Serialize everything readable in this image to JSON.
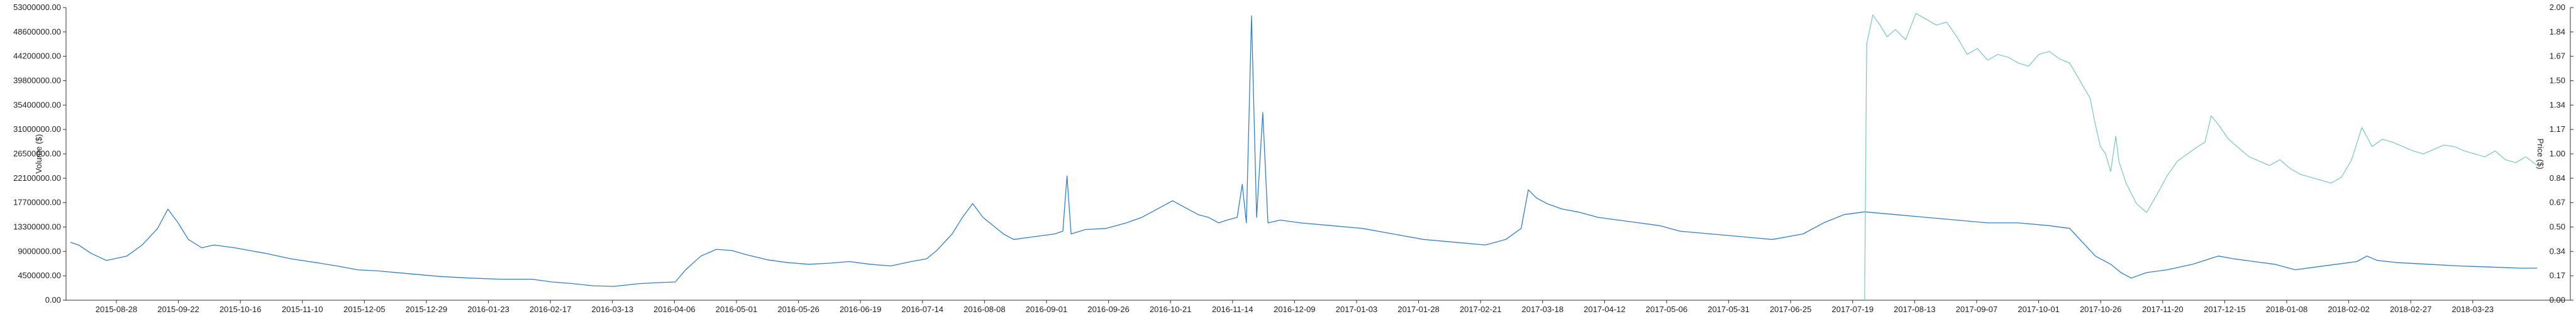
{
  "chart_data": {
    "type": "line",
    "x_tick_labels": [
      "2015-08-28",
      "2015-09-22",
      "2015-10-16",
      "2015-11-10",
      "2015-12-05",
      "2015-12-29",
      "2016-01-23",
      "2016-02-17",
      "2016-03-13",
      "2016-04-06",
      "2016-05-01",
      "2016-05-26",
      "2016-06-19",
      "2016-07-14",
      "2016-08-08",
      "2016-09-01",
      "2016-09-26",
      "2016-10-21",
      "2016-11-14",
      "2016-12-09",
      "2017-01-03",
      "2017-01-28",
      "2017-02-21",
      "2017-03-18",
      "2017-04-12",
      "2017-05-06",
      "2017-05-31",
      "2017-06-25",
      "2017-07-19",
      "2017-08-13",
      "2017-09-07",
      "2017-10-01",
      "2017-10-26",
      "2017-11-20",
      "2017-12-15",
      "2018-01-08",
      "2018-02-02",
      "2018-02-27",
      "2018-03-23"
    ],
    "y_left": {
      "label": "Volume ($)",
      "ticks": [
        "0.00",
        "4500000.00",
        "9000000.00",
        "13300000.00",
        "17700000.00",
        "22100000.00",
        "26500000.00",
        "31000000.00",
        "35400000.00",
        "39800000.00",
        "44200000.00",
        "48600000.00",
        "53000000.00"
      ],
      "ylim": [
        0,
        53000000
      ]
    },
    "y_right": {
      "label": "Price ($)",
      "ticks": [
        "0.00",
        "0.17",
        "0.34",
        "0.50",
        "0.67",
        "0.84",
        "1.00",
        "1.17",
        "1.34",
        "1.50",
        "1.67",
        "1.84",
        "2.00"
      ],
      "ylim": [
        0,
        2
      ]
    },
    "series": [
      {
        "name": "Volume",
        "axis": "left",
        "color": "#2f7ed8",
        "points": [
          [
            0,
            10.5
          ],
          [
            8,
            10.0
          ],
          [
            20,
            8.5
          ],
          [
            35,
            7.2
          ],
          [
            55,
            8.0
          ],
          [
            70,
            10.0
          ],
          [
            85,
            13.0
          ],
          [
            95,
            16.5
          ],
          [
            105,
            14.0
          ],
          [
            115,
            11.0
          ],
          [
            128,
            9.5
          ],
          [
            140,
            10.0
          ],
          [
            160,
            9.5
          ],
          [
            190,
            8.5
          ],
          [
            215,
            7.5
          ],
          [
            240,
            6.8
          ],
          [
            260,
            6.2
          ],
          [
            280,
            5.5
          ],
          [
            300,
            5.3
          ],
          [
            330,
            4.8
          ],
          [
            360,
            4.3
          ],
          [
            390,
            4.0
          ],
          [
            420,
            3.8
          ],
          [
            450,
            3.8
          ],
          [
            470,
            3.3
          ],
          [
            490,
            3.0
          ],
          [
            510,
            2.6
          ],
          [
            530,
            2.5
          ],
          [
            555,
            3.0
          ],
          [
            575,
            3.2
          ],
          [
            590,
            3.3
          ],
          [
            600,
            5.5
          ],
          [
            615,
            8.0
          ],
          [
            630,
            9.2
          ],
          [
            645,
            9.0
          ],
          [
            660,
            8.2
          ],
          [
            680,
            7.3
          ],
          [
            700,
            6.8
          ],
          [
            720,
            6.5
          ],
          [
            740,
            6.7
          ],
          [
            760,
            7.0
          ],
          [
            780,
            6.5
          ],
          [
            800,
            6.2
          ],
          [
            820,
            7.0
          ],
          [
            835,
            7.5
          ],
          [
            845,
            9.0
          ],
          [
            860,
            12.0
          ],
          [
            870,
            15.0
          ],
          [
            880,
            17.5
          ],
          [
            890,
            15.0
          ],
          [
            900,
            13.5
          ],
          [
            910,
            12.0
          ],
          [
            920,
            11.0
          ],
          [
            940,
            11.5
          ],
          [
            960,
            12.0
          ],
          [
            968,
            12.5
          ],
          [
            972,
            22.5
          ],
          [
            976,
            12.0
          ],
          [
            990,
            12.8
          ],
          [
            1010,
            13.0
          ],
          [
            1030,
            14.0
          ],
          [
            1045,
            15.0
          ],
          [
            1060,
            16.5
          ],
          [
            1075,
            18.0
          ],
          [
            1090,
            16.5
          ],
          [
            1100,
            15.5
          ],
          [
            1110,
            15.0
          ],
          [
            1120,
            14.0
          ],
          [
            1128,
            14.5
          ],
          [
            1138,
            15.0
          ],
          [
            1143,
            21.0
          ],
          [
            1147,
            14.0
          ],
          [
            1152,
            51.5
          ],
          [
            1157,
            15.0
          ],
          [
            1163,
            34.0
          ],
          [
            1168,
            14.0
          ],
          [
            1180,
            14.5
          ],
          [
            1200,
            14.0
          ],
          [
            1230,
            13.5
          ],
          [
            1260,
            13.0
          ],
          [
            1290,
            12.0
          ],
          [
            1320,
            11.0
          ],
          [
            1350,
            10.5
          ],
          [
            1380,
            10.0
          ],
          [
            1400,
            11.0
          ],
          [
            1415,
            13.0
          ],
          [
            1422,
            20.0
          ],
          [
            1430,
            18.5
          ],
          [
            1440,
            17.5
          ],
          [
            1455,
            16.5
          ],
          [
            1470,
            16.0
          ],
          [
            1490,
            15.0
          ],
          [
            1510,
            14.5
          ],
          [
            1530,
            14.0
          ],
          [
            1550,
            13.5
          ],
          [
            1570,
            12.5
          ],
          [
            1600,
            12.0
          ],
          [
            1630,
            11.5
          ],
          [
            1660,
            11.0
          ],
          [
            1690,
            12.0
          ],
          [
            1710,
            14.0
          ],
          [
            1730,
            15.5
          ],
          [
            1750,
            16.0
          ],
          [
            1780,
            15.5
          ],
          [
            1810,
            15.0
          ],
          [
            1840,
            14.5
          ],
          [
            1870,
            14.0
          ],
          [
            1900,
            14.0
          ],
          [
            1930,
            13.5
          ],
          [
            1950,
            13.0
          ],
          [
            1960,
            11.0
          ],
          [
            1975,
            8.0
          ],
          [
            1990,
            6.5
          ],
          [
            2000,
            5.0
          ],
          [
            2010,
            4.0
          ],
          [
            2025,
            5.0
          ],
          [
            2045,
            5.5
          ],
          [
            2070,
            6.5
          ],
          [
            2095,
            8.0
          ],
          [
            2110,
            7.5
          ],
          [
            2130,
            7.0
          ],
          [
            2150,
            6.5
          ],
          [
            2170,
            5.5
          ],
          [
            2190,
            6.0
          ],
          [
            2210,
            6.5
          ],
          [
            2230,
            7.0
          ],
          [
            2240,
            8.0
          ],
          [
            2250,
            7.2
          ],
          [
            2270,
            6.8
          ],
          [
            2300,
            6.5
          ],
          [
            2330,
            6.2
          ],
          [
            2360,
            6.0
          ],
          [
            2390,
            5.8
          ],
          [
            2406,
            5.8
          ]
        ]
      },
      {
        "name": "Price",
        "axis": "right",
        "color": "#7ecbc4",
        "points": [
          [
            1750,
            0.0
          ],
          [
            1752,
            1.75
          ],
          [
            1758,
            1.95
          ],
          [
            1765,
            1.88
          ],
          [
            1772,
            1.8
          ],
          [
            1780,
            1.85
          ],
          [
            1790,
            1.78
          ],
          [
            1800,
            1.96
          ],
          [
            1810,
            1.92
          ],
          [
            1820,
            1.88
          ],
          [
            1830,
            1.9
          ],
          [
            1840,
            1.8
          ],
          [
            1850,
            1.68
          ],
          [
            1860,
            1.72
          ],
          [
            1870,
            1.64
          ],
          [
            1880,
            1.68
          ],
          [
            1890,
            1.66
          ],
          [
            1900,
            1.62
          ],
          [
            1910,
            1.6
          ],
          [
            1920,
            1.68
          ],
          [
            1930,
            1.7
          ],
          [
            1940,
            1.65
          ],
          [
            1950,
            1.62
          ],
          [
            1960,
            1.5
          ],
          [
            1970,
            1.38
          ],
          [
            1975,
            1.2
          ],
          [
            1980,
            1.05
          ],
          [
            1985,
            1.0
          ],
          [
            1990,
            0.88
          ],
          [
            1995,
            1.12
          ],
          [
            1998,
            0.95
          ],
          [
            2005,
            0.8
          ],
          [
            2015,
            0.66
          ],
          [
            2025,
            0.6
          ],
          [
            2035,
            0.72
          ],
          [
            2045,
            0.85
          ],
          [
            2055,
            0.95
          ],
          [
            2065,
            1.0
          ],
          [
            2075,
            1.05
          ],
          [
            2082,
            1.08
          ],
          [
            2088,
            1.26
          ],
          [
            2095,
            1.2
          ],
          [
            2105,
            1.1
          ],
          [
            2115,
            1.04
          ],
          [
            2125,
            0.98
          ],
          [
            2135,
            0.95
          ],
          [
            2145,
            0.92
          ],
          [
            2155,
            0.96
          ],
          [
            2165,
            0.9
          ],
          [
            2175,
            0.86
          ],
          [
            2185,
            0.84
          ],
          [
            2195,
            0.82
          ],
          [
            2205,
            0.8
          ],
          [
            2215,
            0.84
          ],
          [
            2225,
            0.96
          ],
          [
            2235,
            1.18
          ],
          [
            2245,
            1.05
          ],
          [
            2255,
            1.1
          ],
          [
            2265,
            1.08
          ],
          [
            2275,
            1.05
          ],
          [
            2285,
            1.02
          ],
          [
            2295,
            1.0
          ],
          [
            2305,
            1.03
          ],
          [
            2315,
            1.06
          ],
          [
            2325,
            1.05
          ],
          [
            2335,
            1.02
          ],
          [
            2345,
            1.0
          ],
          [
            2355,
            0.98
          ],
          [
            2365,
            1.02
          ],
          [
            2375,
            0.96
          ],
          [
            2385,
            0.94
          ],
          [
            2395,
            0.98
          ],
          [
            2406,
            0.92
          ]
        ]
      }
    ],
    "grid": false,
    "legend": "none"
  }
}
